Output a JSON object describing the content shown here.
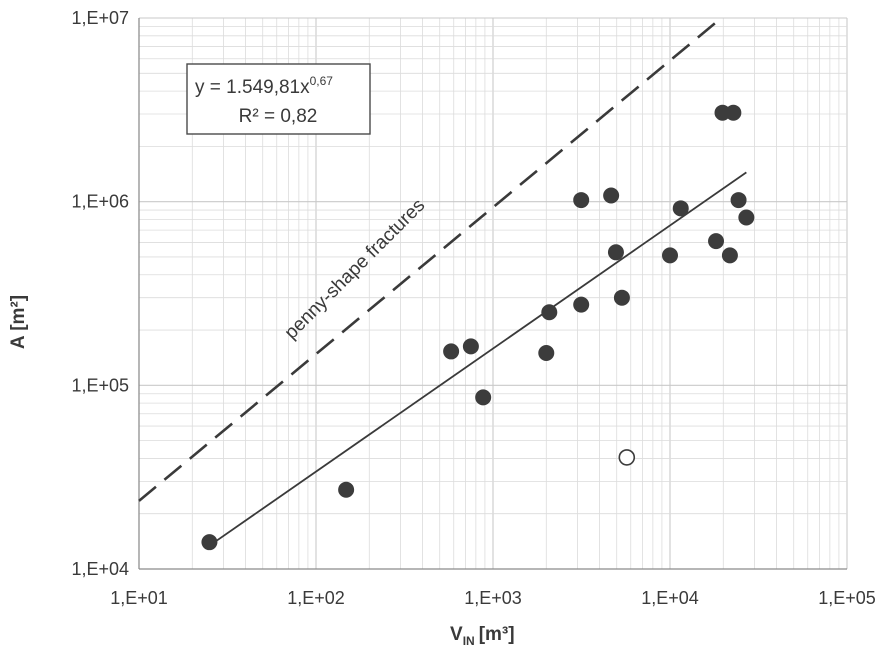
{
  "chart_data": {
    "type": "scatter",
    "x_scale": "log",
    "y_scale": "log",
    "xlim": [
      10,
      100000
    ],
    "ylim": [
      10000,
      10000000
    ],
    "x_ticks": [
      10,
      100,
      1000,
      10000,
      100000
    ],
    "y_ticks": [
      10000,
      100000,
      1000000,
      10000000
    ],
    "x_tick_labels": [
      "1,E+01",
      "1,E+02",
      "1,E+03",
      "1,E+04",
      "1,E+05"
    ],
    "y_tick_labels": [
      "1,E+04",
      "1,E+05",
      "1,E+06",
      "1,E+07"
    ],
    "xlabel": "V",
    "xlabel_sub": "IN",
    "xlabel_unit": "[m³]",
    "ylabel": "A [m²]",
    "grid": true,
    "series": [
      {
        "marker": "filled-circle",
        "color": "#3c3c3c",
        "x": [
          25,
          148,
          580,
          750,
          880,
          2000,
          2080,
          3150,
          3150,
          4650,
          4950,
          5350,
          10000,
          11500,
          18200,
          19800,
          21800,
          22800,
          24400,
          27000
        ],
        "y": [
          14000,
          27000,
          153000,
          163000,
          86000,
          150000,
          250000,
          1020000,
          275000,
          1080000,
          530000,
          300000,
          510000,
          920000,
          610000,
          3050000,
          510000,
          3050000,
          1020000,
          820000
        ]
      },
      {
        "marker": "open-circle",
        "color": "#3c3c3c",
        "x": [
          5700
        ],
        "y": [
          40500
        ]
      }
    ],
    "trend_line": {
      "style": "solid",
      "color": "#3a3a3a",
      "coef": 1549.81,
      "exponent": 0.67,
      "x_range": [
        25,
        27000
      ]
    },
    "reference_line": {
      "style": "dashed",
      "color": "#3a3a3a",
      "x": [
        10,
        19500
      ],
      "y": [
        23500,
        10000000
      ],
      "label": "penny-shape fractures"
    },
    "equation_box": {
      "line1_prefix": "y = 1.549,81x",
      "line1_exponent": "0,67",
      "line2": "R² = 0,82"
    },
    "colors": {
      "grid_major": "#c9c9c9",
      "grid_minor": "#dcdcdc",
      "axis": "#8a8a8a",
      "marker": "#3c3c3c"
    }
  }
}
